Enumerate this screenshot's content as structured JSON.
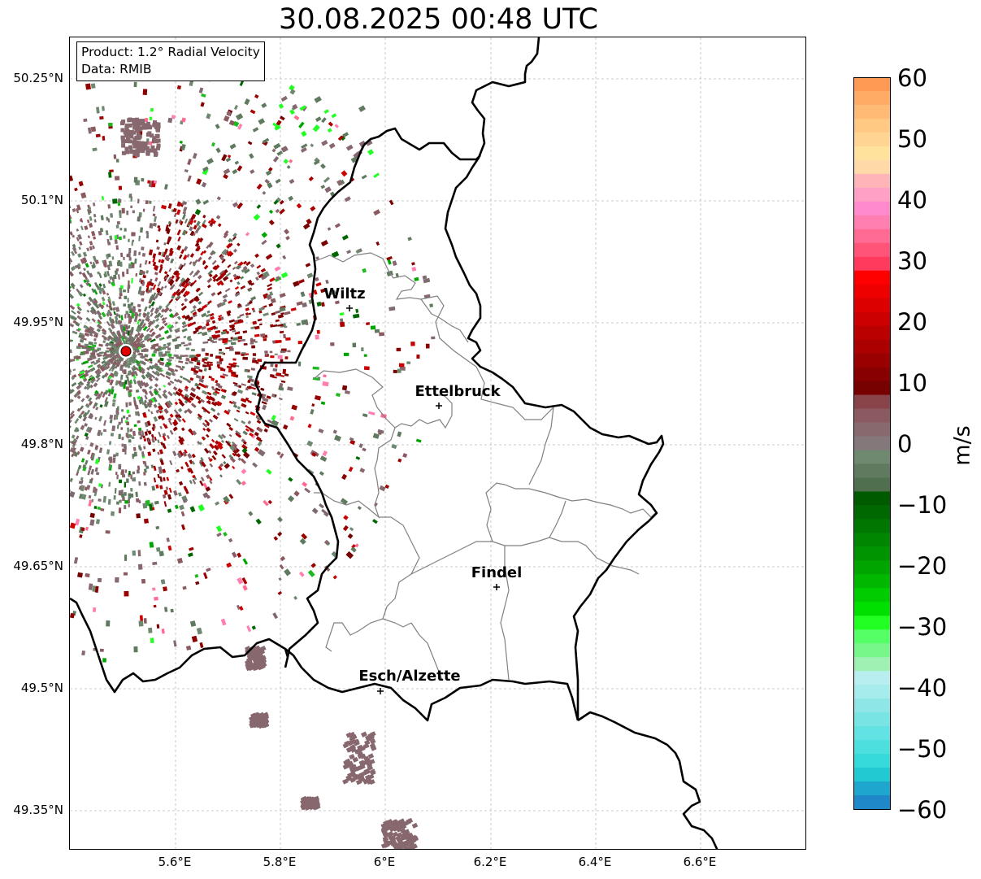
{
  "title": "30.08.2025 00:48 UTC",
  "info": {
    "product": "Product: 1.2° Radial Velocity",
    "data": "Data: RMIB"
  },
  "lat_labels": [
    "50.25°N",
    "50.1°N",
    "49.95°N",
    "49.8°N",
    "49.65°N",
    "49.5°N",
    "49.35°N"
  ],
  "lon_labels": [
    "5.6°E",
    "5.8°E",
    "6°E",
    "6.2°E",
    "6.4°E",
    "6.6°E"
  ],
  "cities": [
    {
      "name": "Wiltz"
    },
    {
      "name": "Ettelbruck"
    },
    {
      "name": "Findel"
    },
    {
      "name": "Esch/Alzette"
    }
  ],
  "colorbar": {
    "unit": "m/s",
    "min": -60,
    "max": 60,
    "tick_labels": [
      "60",
      "50",
      "40",
      "30",
      "20",
      "10",
      "0",
      "−10",
      "−20",
      "−30",
      "−40",
      "−50",
      "−60"
    ]
  },
  "colors": {
    "border": "#000000",
    "canton_lines": "#808080",
    "radar_site": "#e00000",
    "approaching_green": "#1db91d",
    "receding_red": "#8b0000",
    "near_zero": "#86686e"
  }
}
